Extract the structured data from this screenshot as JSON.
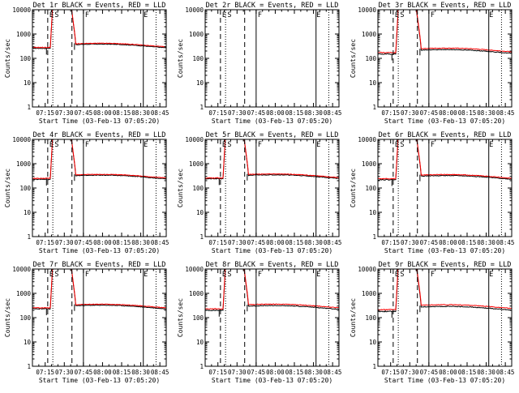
{
  "chart_data": {
    "type": "line",
    "grid": "off",
    "x_ticks": [
      "07:15",
      "07:30",
      "07:45",
      "08:00",
      "08:15",
      "08:30",
      "08:45"
    ],
    "x_tick_minutes": [
      435,
      450,
      465,
      480,
      495,
      510,
      525
    ],
    "xlim_minutes": [
      425,
      530
    ],
    "y_scale": "log",
    "ylim": [
      1,
      10000
    ],
    "y_ticks": [
      "1",
      "10",
      "100",
      "1000",
      "10000"
    ],
    "ylabel": "Counts/sec",
    "xlabel": "Start Time (03-Feb-13 07:05:20)",
    "colors": {
      "events": "#000000",
      "lld": "#ff0000"
    },
    "panels": [
      {
        "title": "Det 1r BLACK = Events, RED = LLD",
        "markers": [
          "E",
          "S",
          "F",
          "E"
        ],
        "base": 260,
        "peak_events": 5000,
        "recovery": 320,
        "lld_offset": 1.08
      },
      {
        "title": "Det 2r BLACK = Events, RED = LLD",
        "markers": [
          "E",
          "S",
          "F",
          "E"
        ],
        "base": null,
        "peak_events": null,
        "recovery": null,
        "lld_offset": 1.0
      },
      {
        "title": "Det 3r BLACK = Events, RED = LLD",
        "markers": [
          "E",
          "S",
          "F",
          "E"
        ],
        "base": 150,
        "peak_events": 3000,
        "recovery": 190,
        "lld_offset": 1.15
      },
      {
        "title": "Det 4r BLACK = Events, RED = LLD",
        "markers": [
          "E",
          "S",
          "F",
          "E"
        ],
        "base": 230,
        "peak_events": 4500,
        "recovery": 280,
        "lld_offset": 1.08
      },
      {
        "title": "Det 5r BLACK = Events, RED = LLD",
        "markers": [
          "E",
          "S",
          "F",
          "E"
        ],
        "base": 240,
        "peak_events": 4500,
        "recovery": 290,
        "lld_offset": 1.08
      },
      {
        "title": "Det 6r BLACK = Events, RED = LLD",
        "markers": [
          "E",
          "S",
          "F",
          "E"
        ],
        "base": 220,
        "peak_events": 4000,
        "recovery": 270,
        "lld_offset": 1.1
      },
      {
        "title": "Det 7r BLACK = Events, RED = LLD",
        "markers": [
          "E",
          "S",
          "F",
          "E"
        ],
        "base": 230,
        "peak_events": 4500,
        "recovery": 270,
        "lld_offset": 1.1
      },
      {
        "title": "Det 8r BLACK = Events, RED = LLD",
        "markers": [
          "E",
          "S",
          "F",
          "E"
        ],
        "base": 200,
        "peak_events": 4000,
        "recovery": 260,
        "lld_offset": 1.15
      },
      {
        "title": "Det 9r BLACK = Events, RED = LLD",
        "markers": [
          "E",
          "S",
          "F",
          "E"
        ],
        "base": 180,
        "peak_events": 3800,
        "recovery": 240,
        "lld_offset": 1.18
      }
    ],
    "vlines_minutes": {
      "dashed": [
        437,
        456
      ],
      "dotted": [
        441,
        522
      ],
      "solid": [
        465,
        512
      ]
    }
  }
}
